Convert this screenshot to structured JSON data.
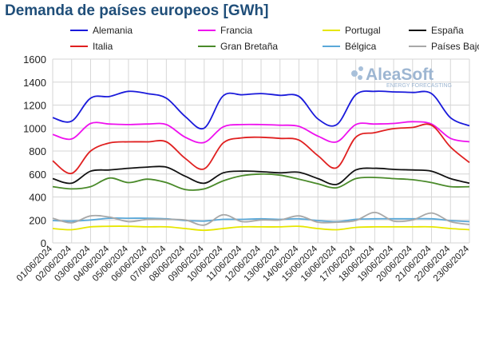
{
  "chart_data": {
    "type": "line",
    "title": "Demanda de países europeos [GWh]",
    "watermark": {
      "brand": "AleaSoft",
      "tagline": "ENERGY FORECASTING"
    },
    "ylim": [
      0,
      1600
    ],
    "yticks": [
      0,
      200,
      400,
      600,
      800,
      1000,
      1200,
      1400,
      1600
    ],
    "grid": true,
    "legend_position": "top",
    "categories": [
      "01/06/2024",
      "02/06/2024",
      "03/06/2024",
      "04/06/2024",
      "05/06/2024",
      "06/06/2024",
      "07/06/2024",
      "08/06/2024",
      "09/06/2024",
      "10/06/2024",
      "11/06/2024",
      "12/06/2024",
      "13/06/2024",
      "14/06/2024",
      "15/06/2024",
      "16/06/2024",
      "17/06/2024",
      "18/06/2024",
      "19/06/2024",
      "20/06/2024",
      "21/06/2024",
      "22/06/2024",
      "23/06/2024"
    ],
    "series": [
      {
        "name": "Alemania",
        "color": "#1a1adb",
        "values": [
          1090,
          1060,
          1260,
          1275,
          1320,
          1300,
          1260,
          1100,
          1000,
          1280,
          1290,
          1300,
          1285,
          1275,
          1080,
          1030,
          1290,
          1320,
          1315,
          1310,
          1300,
          1090,
          1020
        ]
      },
      {
        "name": "Francia",
        "color": "#ee11ee",
        "values": [
          945,
          905,
          1040,
          1035,
          1030,
          1035,
          1030,
          920,
          875,
          1010,
          1030,
          1030,
          1025,
          1015,
          930,
          880,
          1030,
          1035,
          1040,
          1055,
          1035,
          910,
          880
        ]
      },
      {
        "name": "Portugal",
        "color": "#e6e600",
        "values": [
          125,
          115,
          140,
          145,
          145,
          140,
          140,
          125,
          110,
          125,
          140,
          140,
          140,
          145,
          125,
          115,
          135,
          140,
          140,
          140,
          140,
          125,
          115
        ]
      },
      {
        "name": "España",
        "color": "#111111",
        "values": [
          560,
          520,
          625,
          635,
          650,
          660,
          660,
          580,
          520,
          610,
          625,
          620,
          610,
          615,
          560,
          510,
          635,
          650,
          640,
          635,
          625,
          560,
          520
        ]
      },
      {
        "name": "Italia",
        "color": "#e02020",
        "values": [
          715,
          605,
          800,
          870,
          880,
          880,
          880,
          735,
          645,
          870,
          915,
          920,
          910,
          895,
          760,
          655,
          920,
          960,
          995,
          1005,
          1025,
          835,
          700
        ]
      },
      {
        "name": "Gran Bretaña",
        "color": "#4a8a2a",
        "values": [
          490,
          470,
          490,
          565,
          525,
          555,
          525,
          465,
          470,
          540,
          585,
          600,
          590,
          555,
          515,
          480,
          560,
          570,
          560,
          550,
          525,
          490,
          490
        ]
      },
      {
        "name": "Bélgica",
        "color": "#5aa8d8",
        "values": [
          195,
          190,
          200,
          215,
          215,
          215,
          210,
          195,
          190,
          205,
          205,
          210,
          205,
          210,
          195,
          185,
          205,
          210,
          210,
          210,
          210,
          195,
          185
        ]
      },
      {
        "name": "Países Bajos",
        "color": "#a8a8a8",
        "values": [
          215,
          175,
          235,
          225,
          185,
          205,
          205,
          200,
          155,
          245,
          185,
          200,
          200,
          235,
          180,
          180,
          195,
          265,
          190,
          200,
          260,
          185,
          160
        ]
      }
    ]
  }
}
